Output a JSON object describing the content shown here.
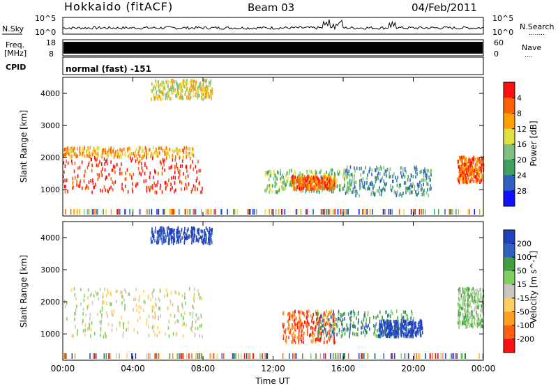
{
  "header": {
    "site": "Hokkaido (fitACF)",
    "beam": "Beam 03",
    "date": "04/Feb/2011"
  },
  "noise_panel": {
    "left_label": "N.Sky",
    "right_label": "N.Search",
    "right_label_dots": "........",
    "tick_top": "10^5",
    "tick_bottom": "10^0"
  },
  "freq_panel": {
    "left_label_1": "Freq.",
    "left_label_2": "[MHz]",
    "right_label": "Nave",
    "right_label_dots": "....",
    "left_ticks": [
      "18",
      "8"
    ],
    "right_ticks": [
      "60",
      "0"
    ]
  },
  "cpid_panel": {
    "label": "CPID",
    "value": "normal (fast) -151"
  },
  "colors": {
    "power_scale": [
      "#1010ff",
      "#3060c0",
      "#40a060",
      "#80c080",
      "#e0e040",
      "#ffa000",
      "#ff6000",
      "#ff1010"
    ],
    "velocity_scale": [
      "#2040c0",
      "#3060c0",
      "#40a040",
      "#80d060",
      "#c8c8c0",
      "#ffd060",
      "#ffa020",
      "#ff6010",
      "#ff1010"
    ]
  },
  "chart_data": [
    {
      "type": "heatmap",
      "name": "power",
      "ylabel": "Slant Range [km]",
      "ylim": [
        180,
        4500
      ],
      "yticks": [
        "1000",
        "2000",
        "3000",
        "4000"
      ],
      "xticks": [
        "00:00",
        "04:00",
        "08:00",
        "12:00",
        "16:00",
        "20:00",
        "00:00"
      ],
      "colorbar_label": "Power [dB]",
      "colorbar_ticks": [
        "4",
        "8",
        "12",
        "16",
        "20",
        "24",
        "28"
      ],
      "regions": [
        {
          "t0": 0.0,
          "t1": 8.0,
          "r0": 900,
          "r1": 2000,
          "value_level": 7
        },
        {
          "t0": 0.0,
          "t1": 7.5,
          "r0": 2000,
          "r1": 2300,
          "value_level": 5
        },
        {
          "t0": 5.0,
          "t1": 8.5,
          "r0": 3800,
          "r1": 4400,
          "value_level": 4
        },
        {
          "t0": 11.5,
          "t1": 16.5,
          "r0": 900,
          "r1": 1600,
          "value_level": 3
        },
        {
          "t0": 13.0,
          "t1": 15.5,
          "r0": 1000,
          "r1": 1400,
          "value_level": 6
        },
        {
          "t0": 16.0,
          "t1": 21.0,
          "r0": 800,
          "r1": 1700,
          "value_level": 2
        },
        {
          "t0": 22.5,
          "t1": 24.0,
          "r0": 1200,
          "r1": 2000,
          "value_level": 6
        }
      ]
    },
    {
      "type": "heatmap",
      "name": "velocity",
      "ylabel": "Slant Range [km]",
      "ylim": [
        180,
        4500
      ],
      "yticks": [
        "1000",
        "2000",
        "3000",
        "4000"
      ],
      "xticks": [
        "00:00",
        "04:00",
        "08:00",
        "12:00",
        "16:00",
        "20:00",
        "00:00"
      ],
      "xlabel": "Time UT",
      "colorbar_label": "Velocity [m s^-1]",
      "colorbar_ticks": [
        "200",
        "100",
        "50",
        "15",
        "-15",
        "-50",
        "-100",
        "-200"
      ],
      "regions": [
        {
          "t0": 0.0,
          "t1": 8.0,
          "r0": 900,
          "r1": 2400,
          "value_level": 4
        },
        {
          "t0": 5.0,
          "t1": 8.5,
          "r0": 3800,
          "r1": 4300,
          "value_level": 0
        },
        {
          "t0": 12.5,
          "t1": 15.5,
          "r0": 700,
          "r1": 1700,
          "value_level": 7
        },
        {
          "t0": 14.5,
          "t1": 20.0,
          "r0": 900,
          "r1": 1700,
          "value_level": 2
        },
        {
          "t0": 18.0,
          "t1": 20.5,
          "r0": 900,
          "r1": 1400,
          "value_level": 0
        },
        {
          "t0": 22.5,
          "t1": 24.0,
          "r0": 1200,
          "r1": 2400,
          "value_level": 3
        }
      ]
    }
  ]
}
